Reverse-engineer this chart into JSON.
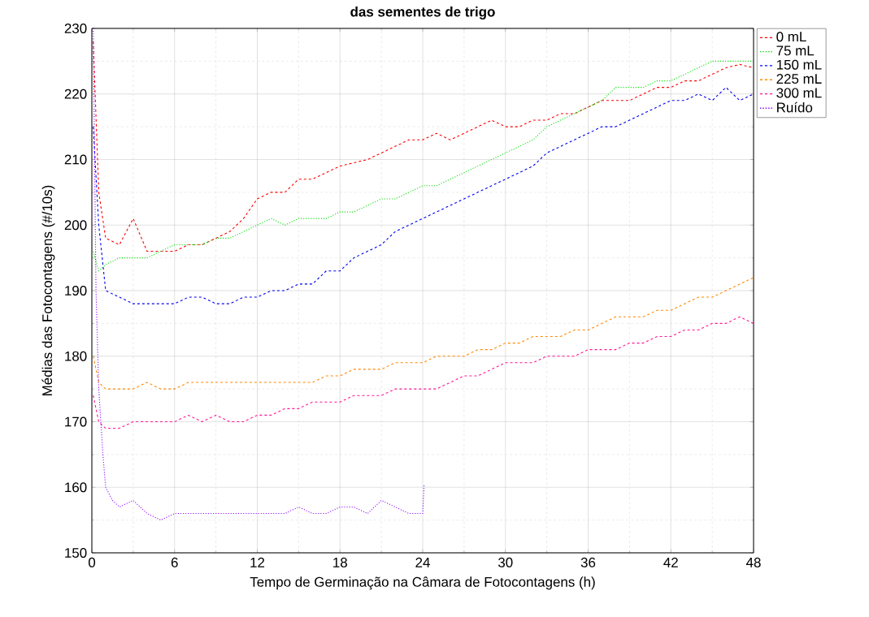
{
  "chart_data": {
    "type": "line",
    "title": "das sementes de trigo",
    "xlabel": "Tempo de Germinação na Câmara de Fotocontagens (h)",
    "ylabel": "Médias das Fotocontagens (#/10s)",
    "xlim": [
      0,
      48
    ],
    "ylim": [
      150,
      230
    ],
    "xticks": [
      0,
      6,
      12,
      18,
      24,
      30,
      36,
      42,
      48
    ],
    "yticks": [
      150,
      160,
      170,
      180,
      190,
      200,
      210,
      220,
      230
    ],
    "grid": true,
    "legend": "top right",
    "marker": "none",
    "x": [
      0.1,
      0.5,
      1,
      2,
      3,
      4,
      5,
      6,
      7,
      8,
      9,
      10,
      11,
      12,
      13,
      14,
      15,
      16,
      17,
      18,
      19,
      20,
      21,
      22,
      23,
      24,
      25,
      26,
      27,
      28,
      29,
      30,
      31,
      32,
      33,
      34,
      35,
      36,
      37,
      38,
      39,
      40,
      41,
      42,
      43,
      44,
      45,
      46,
      47,
      48
    ],
    "series": [
      {
        "name": "0 mL",
        "color": "#ff0000",
        "line_style": "dashed",
        "values": [
          228,
          205,
          198,
          197,
          201,
          196,
          196,
          196,
          197,
          197,
          198,
          199,
          201,
          204,
          205,
          205,
          207,
          207,
          208,
          209,
          209.5,
          210,
          211,
          212,
          213,
          213,
          214,
          213,
          214,
          215,
          216,
          215,
          215,
          216,
          216,
          217,
          217,
          218,
          219,
          219,
          219,
          220,
          221,
          221,
          222,
          222,
          223,
          224,
          224.5,
          224
        ]
      },
      {
        "name": "75 mL",
        "color": "#00dd00",
        "line_style": "dotted",
        "values": [
          196,
          193,
          194,
          195,
          195,
          195,
          196,
          197,
          197,
          197,
          198,
          198,
          199,
          200,
          201,
          200,
          201,
          201,
          201,
          202,
          202,
          203,
          204,
          204,
          205,
          206,
          206,
          207,
          208,
          209,
          210,
          211,
          212,
          213,
          215,
          216,
          217,
          218,
          219,
          221,
          221,
          221,
          222,
          222,
          223,
          224,
          225,
          225,
          225,
          225
        ]
      },
      {
        "name": "150 mL",
        "color": "#0000ee",
        "line_style": "dashed",
        "values": [
          215,
          200,
          190,
          189,
          188,
          188,
          188,
          188,
          189,
          189,
          188,
          188,
          189,
          189,
          190,
          190,
          191,
          191,
          193,
          193,
          195,
          196,
          197,
          199,
          200,
          201,
          202,
          203,
          204,
          205,
          206,
          207,
          208,
          209,
          211,
          212,
          213,
          214,
          215,
          215,
          216,
          217,
          218,
          219,
          219,
          220,
          219,
          221,
          219,
          220
        ]
      },
      {
        "name": "225 mL",
        "color": "#ff8800",
        "line_style": "dashed",
        "values": [
          180,
          176,
          175,
          175,
          175,
          176,
          175,
          175,
          176,
          176,
          176,
          176,
          176,
          176,
          176,
          176,
          176,
          176,
          177,
          177,
          178,
          178,
          178,
          179,
          179,
          179,
          180,
          180,
          180,
          181,
          181,
          182,
          182,
          183,
          183,
          183,
          184,
          184,
          185,
          186,
          186,
          186,
          187,
          187,
          188,
          189,
          189,
          190,
          191,
          192
        ]
      },
      {
        "name": "300 mL",
        "color": "#ff1493",
        "line_style": "dashed",
        "values": [
          174,
          170,
          169,
          169,
          170,
          170,
          170,
          170,
          171,
          170,
          171,
          170,
          170,
          171,
          171,
          172,
          172,
          173,
          173,
          173,
          174,
          174,
          174,
          175,
          175,
          175,
          175,
          176,
          177,
          177,
          178,
          179,
          179,
          179,
          180,
          180,
          180,
          181,
          181,
          181,
          182,
          182,
          183,
          183,
          184,
          184,
          185,
          185,
          186,
          185
        ]
      },
      {
        "name": "Ruído",
        "color": "#8a00ff",
        "line_style": "dotted",
        "x": [
          0.1,
          0.3,
          0.5,
          0.8,
          1,
          1.5,
          2,
          3,
          4,
          5,
          6,
          7,
          8,
          9,
          10,
          11,
          12,
          13,
          14,
          15,
          16,
          17,
          18,
          19,
          20,
          21,
          22,
          23,
          24,
          24.1
        ],
        "values": [
          230,
          190,
          175,
          165,
          160,
          158,
          157,
          158,
          156,
          155,
          156,
          156,
          156,
          156,
          156,
          156,
          156,
          156,
          156,
          157,
          156,
          156,
          157,
          157,
          156,
          158,
          157,
          156,
          156,
          160.5
        ]
      }
    ]
  }
}
